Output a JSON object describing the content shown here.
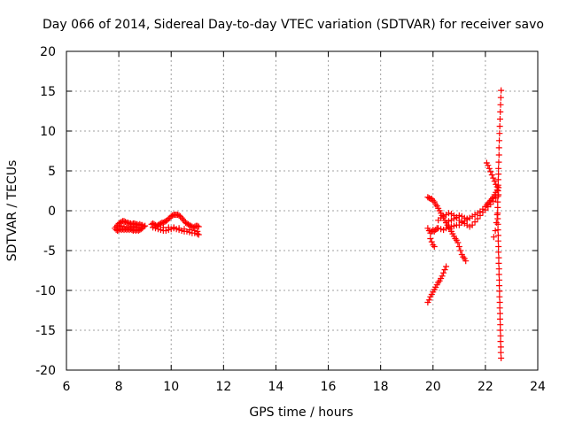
{
  "chart_data": {
    "type": "scatter",
    "title": "Day 066 of 2014, Sidereal Day-to-day VTEC variation (SDTVAR) for receiver savo",
    "xlabel": "GPS time / hours",
    "ylabel": "SDTVAR / TECUs",
    "xlim": [
      6,
      24
    ],
    "ylim": [
      -20,
      20
    ],
    "xticks": [
      6,
      8,
      10,
      12,
      14,
      16,
      18,
      20,
      22,
      24
    ],
    "yticks": [
      -20,
      -15,
      -10,
      -5,
      0,
      5,
      10,
      15,
      20
    ],
    "grid": true,
    "marker": "+",
    "color": "#ff0000",
    "series": [
      {
        "points": [
          [
            7.85,
            -2.2
          ],
          [
            7.9,
            -2.0
          ],
          [
            7.95,
            -1.8
          ],
          [
            8.0,
            -1.6
          ],
          [
            8.05,
            -1.5
          ],
          [
            8.1,
            -1.4
          ],
          [
            8.15,
            -1.3
          ],
          [
            8.2,
            -1.3
          ],
          [
            8.25,
            -1.4
          ],
          [
            8.3,
            -1.5
          ],
          [
            8.35,
            -1.5
          ],
          [
            8.4,
            -1.6
          ],
          [
            8.45,
            -1.6
          ],
          [
            8.5,
            -1.7
          ],
          [
            8.55,
            -1.6
          ],
          [
            8.6,
            -1.6
          ],
          [
            8.65,
            -1.7
          ],
          [
            8.7,
            -1.7
          ],
          [
            8.75,
            -1.8
          ],
          [
            8.8,
            -1.7
          ],
          [
            8.85,
            -1.8
          ],
          [
            8.9,
            -1.8
          ],
          [
            7.9,
            -2.4
          ],
          [
            7.95,
            -2.5
          ],
          [
            8.0,
            -2.4
          ],
          [
            8.05,
            -2.3
          ],
          [
            8.1,
            -2.4
          ],
          [
            8.15,
            -2.3
          ],
          [
            8.2,
            -2.4
          ],
          [
            8.25,
            -2.3
          ],
          [
            8.3,
            -2.4
          ],
          [
            8.35,
            -2.3
          ],
          [
            8.4,
            -2.4
          ],
          [
            8.45,
            -2.3
          ],
          [
            8.5,
            -2.4
          ],
          [
            8.55,
            -2.5
          ],
          [
            8.6,
            -2.4
          ],
          [
            8.65,
            -2.5
          ],
          [
            8.7,
            -2.4
          ],
          [
            8.75,
            -2.5
          ],
          [
            8.8,
            -2.4
          ],
          [
            8.85,
            -2.3
          ],
          [
            8.9,
            -2.2
          ],
          [
            8.95,
            -2.0
          ],
          [
            9.0,
            -1.9
          ],
          [
            8.0,
            -2.0
          ],
          [
            8.1,
            -1.9
          ],
          [
            8.2,
            -2.0
          ],
          [
            8.3,
            -2.1
          ],
          [
            8.4,
            -2.0
          ],
          [
            8.5,
            -2.1
          ],
          [
            8.6,
            -2.0
          ],
          [
            8.7,
            -2.1
          ],
          [
            9.25,
            -1.7
          ],
          [
            9.3,
            -1.6
          ],
          [
            9.35,
            -1.7
          ],
          [
            9.4,
            -1.8
          ],
          [
            9.45,
            -1.9
          ],
          [
            9.5,
            -1.8
          ],
          [
            9.55,
            -1.7
          ],
          [
            9.6,
            -1.6
          ],
          [
            9.65,
            -1.5
          ],
          [
            9.7,
            -1.5
          ],
          [
            9.75,
            -1.4
          ],
          [
            9.8,
            -1.3
          ],
          [
            9.85,
            -1.2
          ],
          [
            9.9,
            -1.0
          ],
          [
            9.95,
            -0.9
          ],
          [
            10.0,
            -0.7
          ],
          [
            10.05,
            -0.6
          ],
          [
            10.1,
            -0.5
          ],
          [
            10.15,
            -0.5
          ],
          [
            10.2,
            -0.5
          ],
          [
            10.25,
            -0.5
          ],
          [
            10.3,
            -0.6
          ],
          [
            10.35,
            -0.7
          ],
          [
            10.4,
            -0.9
          ],
          [
            10.45,
            -1.1
          ],
          [
            10.5,
            -1.3
          ],
          [
            10.55,
            -1.5
          ],
          [
            10.6,
            -1.6
          ],
          [
            10.65,
            -1.7
          ],
          [
            10.7,
            -1.8
          ],
          [
            10.75,
            -1.9
          ],
          [
            10.8,
            -2.0
          ],
          [
            10.85,
            -2.1
          ],
          [
            10.9,
            -2.0
          ],
          [
            10.95,
            -1.9
          ],
          [
            11.0,
            -1.9
          ],
          [
            11.05,
            -2.0
          ],
          [
            9.3,
            -2.1
          ],
          [
            9.4,
            -2.2
          ],
          [
            9.5,
            -2.3
          ],
          [
            9.6,
            -2.4
          ],
          [
            9.7,
            -2.5
          ],
          [
            9.8,
            -2.5
          ],
          [
            9.9,
            -2.4
          ],
          [
            10.0,
            -2.3
          ],
          [
            10.1,
            -2.2
          ],
          [
            10.2,
            -2.3
          ],
          [
            10.3,
            -2.4
          ],
          [
            10.4,
            -2.5
          ],
          [
            10.5,
            -2.6
          ],
          [
            10.6,
            -2.6
          ],
          [
            10.7,
            -2.7
          ],
          [
            10.8,
            -2.8
          ],
          [
            10.9,
            -2.8
          ],
          [
            11.0,
            -2.9
          ],
          [
            11.05,
            -3.0
          ],
          [
            9.5,
            -2.0
          ],
          [
            9.7,
            -2.1
          ],
          [
            9.9,
            -2.1
          ],
          [
            10.1,
            -2.1
          ],
          [
            10.3,
            -2.2
          ],
          [
            10.5,
            -2.3
          ],
          [
            10.7,
            -2.4
          ],
          [
            10.9,
            -2.5
          ],
          [
            11.0,
            -2.6
          ],
          [
            19.8,
            1.7
          ],
          [
            19.85,
            1.6
          ],
          [
            19.9,
            1.5
          ],
          [
            19.95,
            1.5
          ],
          [
            20.0,
            1.3
          ],
          [
            20.05,
            1.1
          ],
          [
            20.1,
            0.8
          ],
          [
            20.15,
            0.6
          ],
          [
            20.2,
            0.3
          ],
          [
            20.25,
            0.0
          ],
          [
            20.3,
            -0.3
          ],
          [
            20.35,
            -0.6
          ],
          [
            20.4,
            -0.9
          ],
          [
            20.45,
            -1.2
          ],
          [
            20.5,
            -1.5
          ],
          [
            20.55,
            -1.8
          ],
          [
            20.6,
            -2.0
          ],
          [
            20.65,
            -2.3
          ],
          [
            20.7,
            -2.6
          ],
          [
            20.75,
            -2.9
          ],
          [
            20.8,
            -3.2
          ],
          [
            20.85,
            -3.5
          ],
          [
            20.9,
            -3.7
          ],
          [
            20.95,
            -4.0
          ],
          [
            21.0,
            -4.5
          ],
          [
            21.05,
            -5.0
          ],
          [
            21.1,
            -5.5
          ],
          [
            21.15,
            -5.8
          ],
          [
            21.2,
            -6.0
          ],
          [
            21.25,
            -6.3
          ],
          [
            19.8,
            -2.2
          ],
          [
            19.85,
            -2.5
          ],
          [
            19.9,
            -2.8
          ],
          [
            19.95,
            -2.6
          ],
          [
            20.0,
            -2.4
          ],
          [
            20.05,
            -2.6
          ],
          [
            20.1,
            -2.4
          ],
          [
            20.15,
            -2.2
          ],
          [
            20.2,
            -2.2
          ],
          [
            20.3,
            -2.3
          ],
          [
            20.4,
            -2.4
          ],
          [
            20.5,
            -2.2
          ],
          [
            20.6,
            -2.1
          ],
          [
            20.7,
            -2.0
          ],
          [
            20.8,
            -1.9
          ],
          [
            20.9,
            -1.8
          ],
          [
            21.0,
            -1.8
          ],
          [
            21.1,
            -1.5
          ],
          [
            21.2,
            -1.3
          ],
          [
            21.3,
            -1.1
          ],
          [
            21.4,
            -0.9
          ],
          [
            21.5,
            -0.7
          ],
          [
            21.6,
            -0.5
          ],
          [
            21.7,
            -0.3
          ],
          [
            21.8,
            -0.1
          ],
          [
            21.9,
            0.2
          ],
          [
            22.0,
            0.5
          ],
          [
            22.05,
            0.7
          ],
          [
            22.1,
            0.9
          ],
          [
            22.15,
            1.1
          ],
          [
            22.2,
            1.3
          ],
          [
            22.25,
            1.5
          ],
          [
            22.3,
            1.7
          ],
          [
            22.35,
            2.0
          ],
          [
            22.4,
            2.3
          ],
          [
            22.45,
            2.6
          ],
          [
            22.5,
            2.9
          ],
          [
            19.9,
            -3.5
          ],
          [
            19.95,
            -3.9
          ],
          [
            20.0,
            -4.3
          ],
          [
            20.05,
            -4.5
          ],
          [
            20.2,
            -1.2
          ],
          [
            20.3,
            -0.9
          ],
          [
            20.4,
            -0.7
          ],
          [
            20.5,
            -0.5
          ],
          [
            20.6,
            -0.3
          ],
          [
            20.7,
            -0.4
          ],
          [
            20.8,
            -0.6
          ],
          [
            20.9,
            -0.9
          ],
          [
            21.0,
            -1.2
          ],
          [
            21.1,
            -1.4
          ],
          [
            21.2,
            -1.6
          ],
          [
            21.3,
            -1.8
          ],
          [
            21.4,
            -2.0
          ],
          [
            21.5,
            -1.8
          ],
          [
            21.6,
            -1.4
          ],
          [
            21.7,
            -1.0
          ],
          [
            21.8,
            -0.6
          ],
          [
            21.9,
            -0.2
          ],
          [
            22.0,
            0.1
          ],
          [
            22.1,
            0.5
          ],
          [
            22.2,
            0.8
          ],
          [
            22.3,
            1.2
          ],
          [
            22.4,
            1.6
          ],
          [
            22.5,
            2.0
          ],
          [
            20.5,
            -1.5
          ],
          [
            20.6,
            -1.3
          ],
          [
            20.7,
            -1.2
          ],
          [
            20.8,
            -1.0
          ],
          [
            20.9,
            -0.8
          ],
          [
            21.0,
            -0.6
          ],
          [
            21.1,
            -0.7
          ],
          [
            21.2,
            -0.9
          ],
          [
            21.3,
            -1.0
          ],
          [
            19.8,
            -11.5
          ],
          [
            19.85,
            -11.2
          ],
          [
            19.9,
            -10.8
          ],
          [
            19.95,
            -10.5
          ],
          [
            20.0,
            -10.2
          ],
          [
            20.05,
            -9.9
          ],
          [
            20.1,
            -9.6
          ],
          [
            20.15,
            -9.3
          ],
          [
            20.2,
            -9.0
          ],
          [
            20.25,
            -8.8
          ],
          [
            20.3,
            -8.5
          ],
          [
            20.35,
            -8.2
          ],
          [
            20.4,
            -7.8
          ],
          [
            20.45,
            -7.4
          ],
          [
            20.5,
            -7.0
          ],
          [
            22.05,
            6.0
          ],
          [
            22.1,
            5.7
          ],
          [
            22.15,
            5.3
          ],
          [
            22.2,
            4.9
          ],
          [
            22.25,
            4.5
          ],
          [
            22.3,
            4.1
          ],
          [
            22.35,
            3.7
          ],
          [
            22.4,
            3.3
          ],
          [
            22.45,
            3.0
          ],
          [
            22.45,
            -0.5
          ],
          [
            22.42,
            -1.5
          ],
          [
            22.38,
            -2.5
          ],
          [
            22.32,
            -3.3
          ],
          [
            22.6,
            15.1
          ],
          [
            22.59,
            14.2
          ],
          [
            22.58,
            13.3
          ],
          [
            22.57,
            12.4
          ],
          [
            22.56,
            11.5
          ],
          [
            22.55,
            10.6
          ],
          [
            22.54,
            9.7
          ],
          [
            22.53,
            8.8
          ],
          [
            22.52,
            7.9
          ],
          [
            22.52,
            7.0
          ],
          [
            22.51,
            6.1
          ],
          [
            22.5,
            5.3
          ],
          [
            22.5,
            4.6
          ],
          [
            22.49,
            3.9
          ],
          [
            22.49,
            3.2
          ],
          [
            22.48,
            2.5
          ],
          [
            22.48,
            1.8
          ],
          [
            22.47,
            1.1
          ],
          [
            22.47,
            0.4
          ],
          [
            22.47,
            -0.3
          ],
          [
            22.47,
            -1.0
          ],
          [
            22.48,
            -1.7
          ],
          [
            22.48,
            -2.4
          ],
          [
            22.49,
            -3.1
          ],
          [
            22.49,
            -3.8
          ],
          [
            22.5,
            -4.5
          ],
          [
            22.5,
            -5.2
          ],
          [
            22.51,
            -5.9
          ],
          [
            22.51,
            -6.6
          ],
          [
            22.52,
            -7.3
          ],
          [
            22.52,
            -8.0
          ],
          [
            22.53,
            -8.7
          ],
          [
            22.53,
            -9.4
          ],
          [
            22.54,
            -10.1
          ],
          [
            22.54,
            -10.8
          ],
          [
            22.55,
            -11.5
          ],
          [
            22.55,
            -12.2
          ],
          [
            22.56,
            -12.9
          ],
          [
            22.56,
            -13.6
          ],
          [
            22.57,
            -14.3
          ],
          [
            22.57,
            -15.0
          ],
          [
            22.58,
            -15.7
          ],
          [
            22.58,
            -16.4
          ],
          [
            22.59,
            -17.1
          ],
          [
            22.59,
            -17.8
          ],
          [
            22.6,
            -18.5
          ]
        ]
      }
    ]
  }
}
